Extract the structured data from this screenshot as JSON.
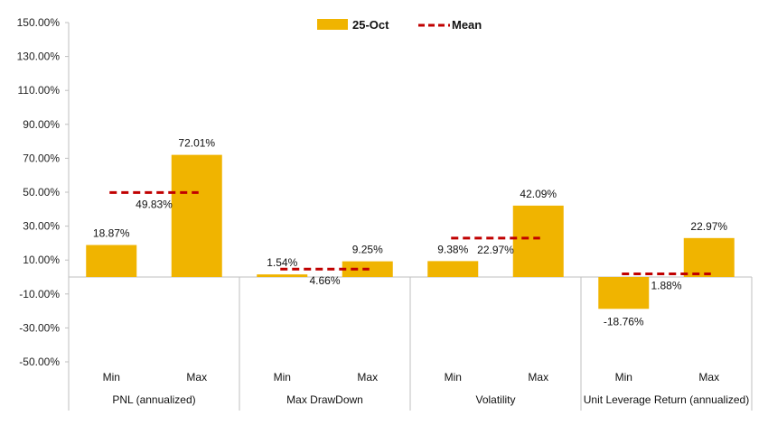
{
  "chart_data": {
    "type": "bar",
    "y_ticks": [
      "150.00%",
      "130.00%",
      "110.00%",
      "90.00%",
      "70.00%",
      "50.00%",
      "30.00%",
      "10.00%",
      "-10.00%",
      "-30.00%",
      "-50.00%"
    ],
    "ylim": [
      -50,
      150
    ],
    "legend": {
      "bar_label": "25-Oct",
      "mean_label": "Mean",
      "placement": "top-center"
    },
    "colors": {
      "bar": "#F0B400",
      "mean": "#C00000",
      "axis": "#BFBFBF"
    },
    "groups": [
      {
        "name": "PNL (annualized)",
        "mean": 49.83,
        "mean_label": "49.83%",
        "bars": [
          {
            "category": "Min",
            "value": 18.87,
            "label": "18.87%"
          },
          {
            "category": "Max",
            "value": 72.01,
            "label": "72.01%"
          }
        ]
      },
      {
        "name": "Max DrawDown",
        "mean": 4.66,
        "mean_label": "4.66%",
        "bars": [
          {
            "category": "Min",
            "value": 1.54,
            "label": "1.54%"
          },
          {
            "category": "Max",
            "value": 9.25,
            "label": "9.25%"
          }
        ]
      },
      {
        "name": "Volatility",
        "mean": 22.97,
        "mean_label": "22.97%",
        "bars": [
          {
            "category": "Min",
            "value": 9.38,
            "label": "9.38%"
          },
          {
            "category": "Max",
            "value": 42.09,
            "label": "42.09%"
          }
        ]
      },
      {
        "name": "Unit Leverage Return (annualized)",
        "mean": 1.88,
        "mean_label": "1.88%",
        "bars": [
          {
            "category": "Min",
            "value": -18.76,
            "label": "-18.76%"
          },
          {
            "category": "Max",
            "value": 22.97,
            "label": "22.97%"
          }
        ]
      }
    ]
  }
}
